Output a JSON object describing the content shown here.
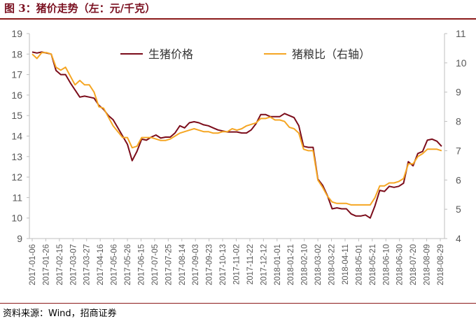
{
  "title": "图 3：猪价走势（左：元/千克）",
  "source": "资料来源：Wind，招商证券",
  "colors": {
    "price": "#7b0c1a",
    "ratio": "#f5a623",
    "axis": "#bfbfbf",
    "text": "#595959"
  },
  "chart_data": {
    "type": "line",
    "title": "猪价走势（左：元/千克）",
    "legend_position": "top",
    "grid": false,
    "y_left": {
      "min": 9,
      "max": 19,
      "ticks": [
        9,
        10,
        11,
        12,
        13,
        14,
        15,
        16,
        17,
        18,
        19
      ]
    },
    "y_right": {
      "min": 4,
      "max": 11,
      "ticks": [
        4,
        5,
        6,
        7,
        8,
        9,
        10,
        11
      ]
    },
    "x_tick_labels": [
      "2017-01-06",
      "2017-01-26",
      "2017-02-15",
      "2017-03-07",
      "2017-03-27",
      "2017-04-16",
      "2017-05-06",
      "2017-05-26",
      "2017-06-15",
      "2017-07-05",
      "2017-07-25",
      "2017-08-14",
      "2017-09-03",
      "2017-09-23",
      "2017-10-13",
      "2017-11-02",
      "2017-11-22",
      "2017-12-12",
      "2018-01-01",
      "2018-01-21",
      "2018-02-10",
      "2018-03-02",
      "2018-03-22",
      "2018-04-11",
      "2018-05-01",
      "2018-05-21",
      "2018-06-10",
      "2018-06-30",
      "2018-07-20",
      "2018-08-09",
      "2018-08-29"
    ],
    "series": [
      {
        "name": "生猪价格",
        "axis": "left",
        "points": [
          [
            "2017-01-06",
            18.1
          ],
          [
            "2017-01-13",
            18.05
          ],
          [
            "2017-01-20",
            18.1
          ],
          [
            "2017-01-27",
            18.05
          ],
          [
            "2017-02-03",
            18.0
          ],
          [
            "2017-02-10",
            17.2
          ],
          [
            "2017-02-17",
            17.0
          ],
          [
            "2017-02-24",
            17.0
          ],
          [
            "2017-03-03",
            16.6
          ],
          [
            "2017-03-10",
            16.25
          ],
          [
            "2017-03-17",
            15.9
          ],
          [
            "2017-03-24",
            15.95
          ],
          [
            "2017-03-31",
            15.9
          ],
          [
            "2017-04-07",
            15.85
          ],
          [
            "2017-04-14",
            15.5
          ],
          [
            "2017-04-21",
            15.3
          ],
          [
            "2017-04-28",
            15.0
          ],
          [
            "2017-05-05",
            14.8
          ],
          [
            "2017-05-12",
            14.4
          ],
          [
            "2017-05-19",
            14.0
          ],
          [
            "2017-05-26",
            13.6
          ],
          [
            "2017-06-02",
            12.8
          ],
          [
            "2017-06-09",
            13.25
          ],
          [
            "2017-06-16",
            13.85
          ],
          [
            "2017-06-23",
            13.8
          ],
          [
            "2017-06-30",
            13.95
          ],
          [
            "2017-07-07",
            14.05
          ],
          [
            "2017-07-14",
            13.9
          ],
          [
            "2017-07-21",
            13.95
          ],
          [
            "2017-07-28",
            13.95
          ],
          [
            "2017-08-04",
            14.15
          ],
          [
            "2017-08-11",
            14.5
          ],
          [
            "2017-08-18",
            14.4
          ],
          [
            "2017-08-25",
            14.65
          ],
          [
            "2017-09-01",
            14.7
          ],
          [
            "2017-09-08",
            14.65
          ],
          [
            "2017-09-15",
            14.55
          ],
          [
            "2017-09-22",
            14.5
          ],
          [
            "2017-09-29",
            14.4
          ],
          [
            "2017-10-06",
            14.3
          ],
          [
            "2017-10-13",
            14.25
          ],
          [
            "2017-10-20",
            14.2
          ],
          [
            "2017-10-27",
            14.2
          ],
          [
            "2017-11-03",
            14.2
          ],
          [
            "2017-11-10",
            14.15
          ],
          [
            "2017-11-17",
            14.15
          ],
          [
            "2017-11-24",
            14.3
          ],
          [
            "2017-12-01",
            14.6
          ],
          [
            "2017-12-08",
            15.05
          ],
          [
            "2017-12-15",
            15.05
          ],
          [
            "2017-12-22",
            14.95
          ],
          [
            "2017-12-29",
            14.95
          ],
          [
            "2018-01-05",
            14.95
          ],
          [
            "2018-01-12",
            15.1
          ],
          [
            "2018-01-19",
            15.0
          ],
          [
            "2018-01-26",
            14.9
          ],
          [
            "2018-02-02",
            14.5
          ],
          [
            "2018-02-09",
            13.5
          ],
          [
            "2018-02-16",
            13.45
          ],
          [
            "2018-02-23",
            13.45
          ],
          [
            "2018-03-02",
            11.9
          ],
          [
            "2018-03-09",
            11.6
          ],
          [
            "2018-03-16",
            11.1
          ],
          [
            "2018-03-23",
            10.45
          ],
          [
            "2018-03-30",
            10.5
          ],
          [
            "2018-04-06",
            10.45
          ],
          [
            "2018-04-13",
            10.45
          ],
          [
            "2018-04-20",
            10.2
          ],
          [
            "2018-04-27",
            10.1
          ],
          [
            "2018-05-04",
            10.1
          ],
          [
            "2018-05-11",
            10.15
          ],
          [
            "2018-05-18",
            10.0
          ],
          [
            "2018-05-25",
            10.6
          ],
          [
            "2018-06-01",
            11.35
          ],
          [
            "2018-06-08",
            11.3
          ],
          [
            "2018-06-15",
            11.55
          ],
          [
            "2018-06-22",
            11.5
          ],
          [
            "2018-06-29",
            11.55
          ],
          [
            "2018-07-06",
            11.7
          ],
          [
            "2018-07-13",
            12.75
          ],
          [
            "2018-07-20",
            12.55
          ],
          [
            "2018-07-27",
            13.15
          ],
          [
            "2018-08-03",
            13.25
          ],
          [
            "2018-08-10",
            13.8
          ],
          [
            "2018-08-17",
            13.85
          ],
          [
            "2018-08-24",
            13.75
          ],
          [
            "2018-08-31",
            13.5
          ]
        ]
      },
      {
        "name": "猪粮比（右轴）",
        "axis": "right",
        "points": [
          [
            "2017-01-06",
            10.3
          ],
          [
            "2017-01-13",
            10.15
          ],
          [
            "2017-01-20",
            10.35
          ],
          [
            "2017-01-27",
            10.35
          ],
          [
            "2017-02-03",
            10.3
          ],
          [
            "2017-02-10",
            9.85
          ],
          [
            "2017-02-17",
            9.75
          ],
          [
            "2017-02-24",
            9.85
          ],
          [
            "2017-03-03",
            9.55
          ],
          [
            "2017-03-10",
            9.25
          ],
          [
            "2017-03-17",
            9.4
          ],
          [
            "2017-03-24",
            9.25
          ],
          [
            "2017-03-31",
            9.25
          ],
          [
            "2017-04-07",
            9.0
          ],
          [
            "2017-04-14",
            8.5
          ],
          [
            "2017-04-21",
            8.45
          ],
          [
            "2017-04-28",
            8.15
          ],
          [
            "2017-05-05",
            7.85
          ],
          [
            "2017-05-12",
            7.65
          ],
          [
            "2017-05-19",
            7.45
          ],
          [
            "2017-05-26",
            7.45
          ],
          [
            "2017-06-02",
            7.1
          ],
          [
            "2017-06-09",
            7.15
          ],
          [
            "2017-06-16",
            7.45
          ],
          [
            "2017-06-23",
            7.45
          ],
          [
            "2017-06-30",
            7.45
          ],
          [
            "2017-07-07",
            7.4
          ],
          [
            "2017-07-14",
            7.35
          ],
          [
            "2017-07-21",
            7.35
          ],
          [
            "2017-07-28",
            7.4
          ],
          [
            "2017-08-04",
            7.5
          ],
          [
            "2017-08-11",
            7.6
          ],
          [
            "2017-08-18",
            7.65
          ],
          [
            "2017-08-25",
            7.7
          ],
          [
            "2017-09-01",
            7.75
          ],
          [
            "2017-09-08",
            7.7
          ],
          [
            "2017-09-15",
            7.65
          ],
          [
            "2017-09-22",
            7.65
          ],
          [
            "2017-09-29",
            7.6
          ],
          [
            "2017-10-06",
            7.6
          ],
          [
            "2017-10-13",
            7.65
          ],
          [
            "2017-10-20",
            7.65
          ],
          [
            "2017-10-27",
            7.75
          ],
          [
            "2017-11-03",
            7.7
          ],
          [
            "2017-11-10",
            7.75
          ],
          [
            "2017-11-17",
            7.85
          ],
          [
            "2017-11-24",
            7.9
          ],
          [
            "2017-12-01",
            7.95
          ],
          [
            "2017-12-08",
            8.1
          ],
          [
            "2017-12-15",
            8.1
          ],
          [
            "2017-12-22",
            8.15
          ],
          [
            "2017-12-29",
            8.05
          ],
          [
            "2018-01-05",
            8.05
          ],
          [
            "2018-01-12",
            8.0
          ],
          [
            "2018-01-19",
            7.8
          ],
          [
            "2018-01-26",
            7.75
          ],
          [
            "2018-02-02",
            7.6
          ],
          [
            "2018-02-09",
            7.05
          ],
          [
            "2018-02-16",
            7.0
          ],
          [
            "2018-02-23",
            7.0
          ],
          [
            "2018-03-02",
            6.0
          ],
          [
            "2018-03-09",
            5.75
          ],
          [
            "2018-03-16",
            5.45
          ],
          [
            "2018-03-23",
            5.25
          ],
          [
            "2018-03-30",
            5.2
          ],
          [
            "2018-04-06",
            5.2
          ],
          [
            "2018-04-13",
            5.2
          ],
          [
            "2018-04-20",
            5.15
          ],
          [
            "2018-04-27",
            5.15
          ],
          [
            "2018-05-04",
            5.15
          ],
          [
            "2018-05-11",
            5.15
          ],
          [
            "2018-05-18",
            5.15
          ],
          [
            "2018-05-25",
            5.4
          ],
          [
            "2018-06-01",
            5.8
          ],
          [
            "2018-06-08",
            5.8
          ],
          [
            "2018-06-15",
            5.9
          ],
          [
            "2018-06-22",
            5.9
          ],
          [
            "2018-06-29",
            5.95
          ],
          [
            "2018-07-06",
            6.05
          ],
          [
            "2018-07-13",
            6.55
          ],
          [
            "2018-07-20",
            6.55
          ],
          [
            "2018-07-27",
            6.8
          ],
          [
            "2018-08-03",
            6.9
          ],
          [
            "2018-08-10",
            7.05
          ],
          [
            "2018-08-17",
            7.05
          ],
          [
            "2018-08-24",
            7.05
          ],
          [
            "2018-08-31",
            7.0
          ]
        ]
      }
    ]
  }
}
